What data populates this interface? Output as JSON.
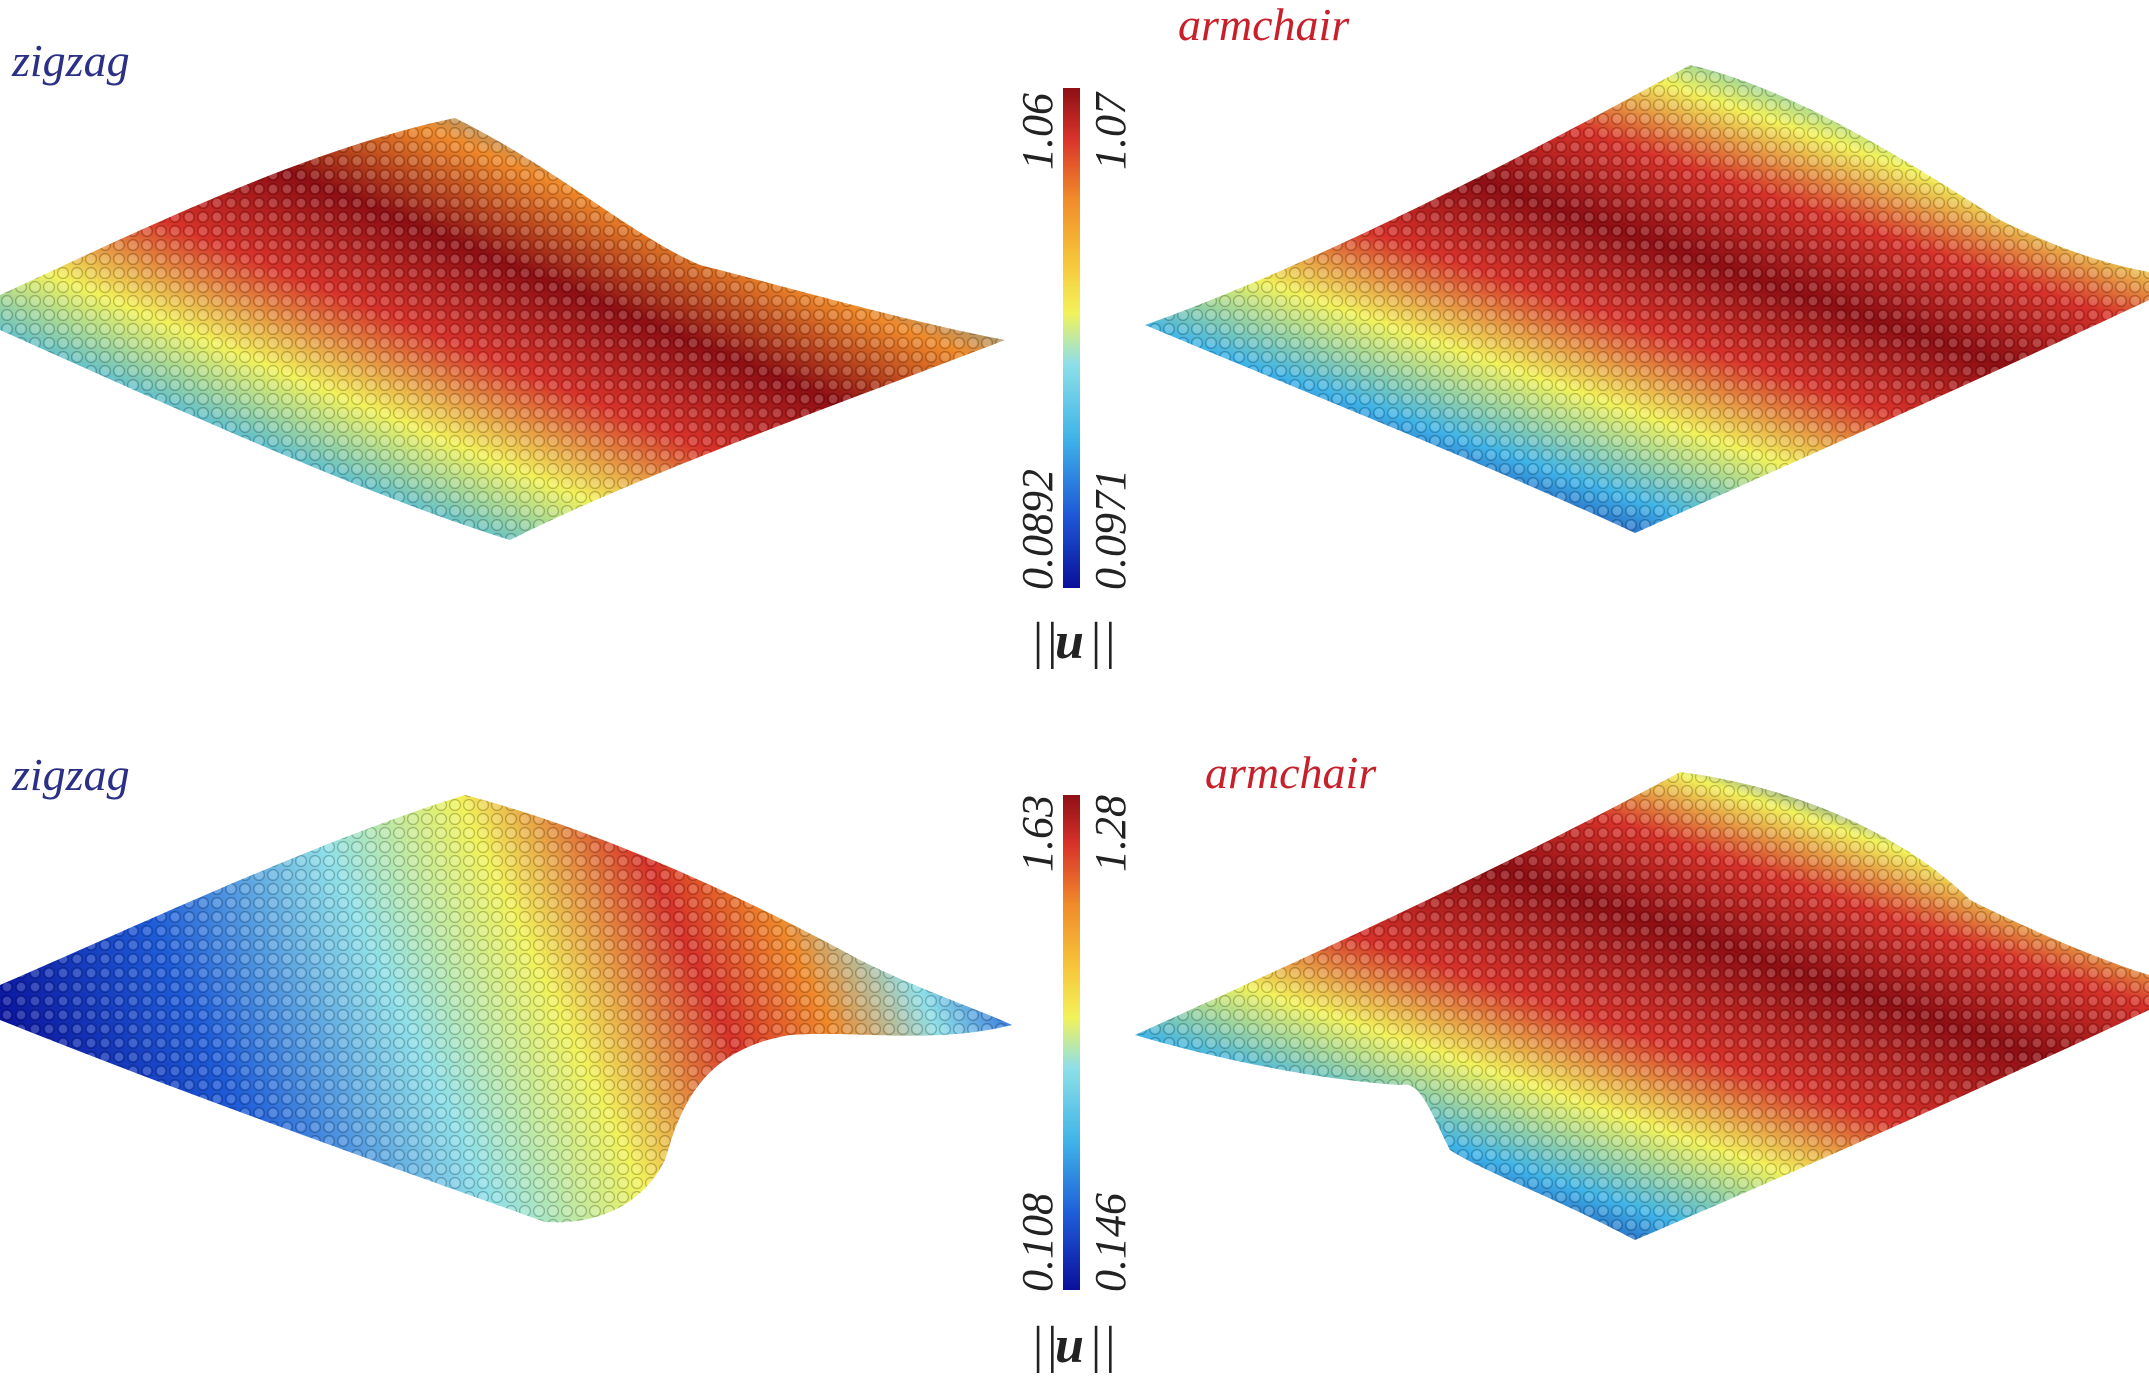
{
  "panels": [
    {
      "id": "top-left",
      "label": "zigzag",
      "label_color": "#2b2f86"
    },
    {
      "id": "top-right",
      "label": "armchair",
      "label_color": "#c8202a"
    },
    {
      "id": "bottom-left",
      "label": "zigzag",
      "label_color": "#2b2f86"
    },
    {
      "id": "bottom-right",
      "label": "armchair",
      "label_color": "#c8202a"
    }
  ],
  "colorbars": [
    {
      "id": "top",
      "left_max": "1.06",
      "left_min": "0.0892",
      "right_max": "1.07",
      "right_min": "0.0971",
      "symbol": "u"
    },
    {
      "id": "bottom",
      "left_max": "1.63",
      "left_min": "0.108",
      "right_max": "1.28",
      "right_min": "0.146",
      "symbol": "u"
    }
  ],
  "colormap": [
    "#0a0f9a",
    "#1e5bd8",
    "#3fb4e8",
    "#8fe0e8",
    "#f2f25a",
    "#f7c73a",
    "#f08a2a",
    "#d8322a",
    "#8e0f14"
  ]
}
